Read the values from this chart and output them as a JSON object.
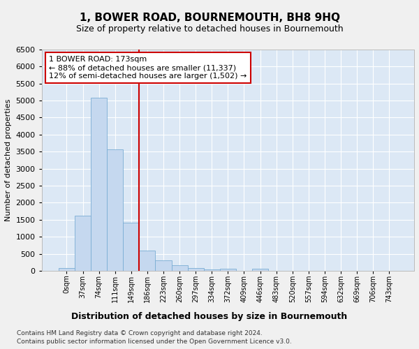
{
  "title": "1, BOWER ROAD, BOURNEMOUTH, BH8 9HQ",
  "subtitle": "Size of property relative to detached houses in Bournemouth",
  "xlabel": "Distribution of detached houses by size in Bournemouth",
  "ylabel": "Number of detached properties",
  "footnote1": "Contains HM Land Registry data © Crown copyright and database right 2024.",
  "footnote2": "Contains public sector information licensed under the Open Government Licence v3.0.",
  "annotation_line1": "1 BOWER ROAD: 173sqm",
  "annotation_line2": "← 88% of detached houses are smaller (11,337)",
  "annotation_line3": "12% of semi-detached houses are larger (1,502) →",
  "bar_color": "#c5d8ef",
  "bar_edge_color": "#7aadd4",
  "bg_color": "#dce8f5",
  "grid_color": "#ffffff",
  "vline_color": "#cc0000",
  "fig_facecolor": "#f0f0f0",
  "categories": [
    "0sqm",
    "37sqm",
    "74sqm",
    "111sqm",
    "149sqm",
    "186sqm",
    "223sqm",
    "260sqm",
    "297sqm",
    "334sqm",
    "372sqm",
    "409sqm",
    "446sqm",
    "483sqm",
    "520sqm",
    "557sqm",
    "594sqm",
    "632sqm",
    "669sqm",
    "706sqm",
    "743sqm"
  ],
  "values": [
    75,
    1620,
    5080,
    3570,
    1410,
    600,
    305,
    155,
    80,
    50,
    60,
    0,
    60,
    0,
    0,
    0,
    0,
    0,
    0,
    0,
    0
  ],
  "ylim": [
    0,
    6500
  ],
  "yticks": [
    0,
    500,
    1000,
    1500,
    2000,
    2500,
    3000,
    3500,
    4000,
    4500,
    5000,
    5500,
    6000,
    6500
  ],
  "vline_x": 4.5,
  "title_fontsize": 11,
  "subtitle_fontsize": 9,
  "ylabel_fontsize": 8,
  "xlabel_fontsize": 9,
  "tick_fontsize": 8,
  "xtick_fontsize": 7,
  "annot_fontsize": 8,
  "footnote_fontsize": 6.5
}
